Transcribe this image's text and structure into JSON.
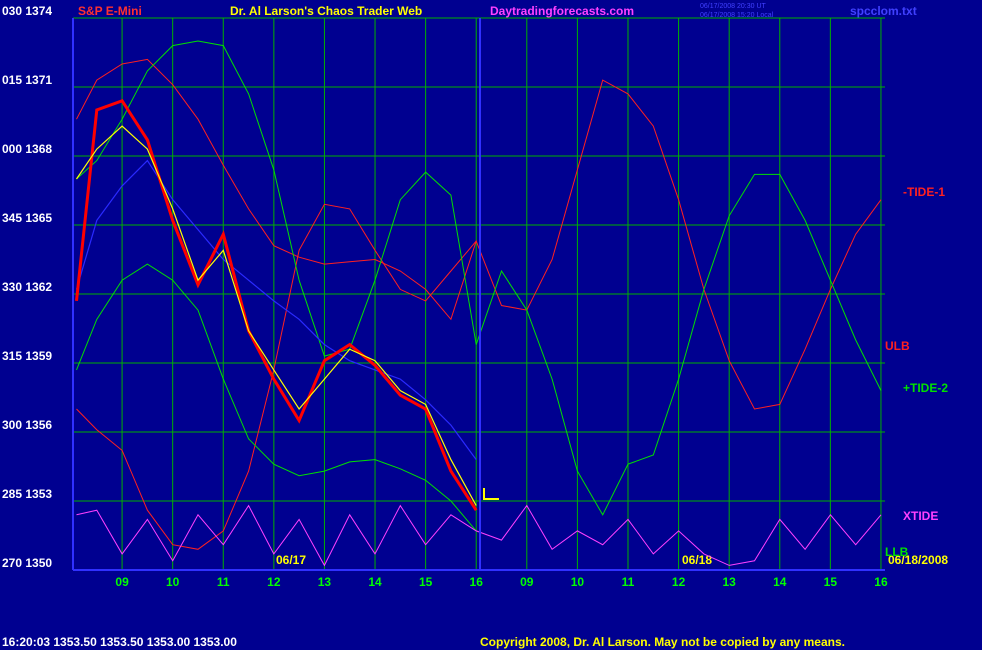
{
  "chart_data": {
    "type": "line",
    "symbol": "S&P E-Mini",
    "title": "Dr. Al Larson's Chaos Trader Web",
    "website": "Daytradingforecasts.com",
    "timestamps": [
      "06/17/2008 20:30 UT",
      "06/17/2008 15:20 Local"
    ],
    "file": "spcclom.txt",
    "day_labels": [
      "06/17",
      "06/18"
    ],
    "end_date": "06/18/2008",
    "status": "16:20:03  1353.50  1353.50  1353.00  1353.00",
    "copyright": "Copyright 2008, Dr. Al Larson. May not be copied by any means.",
    "grid": true,
    "xlim": [
      -0.97,
      15.08
    ],
    "xticks": [
      {
        "value": 0,
        "label": "09"
      },
      {
        "value": 1,
        "label": "10"
      },
      {
        "value": 2,
        "label": "11"
      },
      {
        "value": 3,
        "label": "12"
      },
      {
        "value": 4,
        "label": "13"
      },
      {
        "value": 5,
        "label": "14"
      },
      {
        "value": 6,
        "label": "15"
      },
      {
        "value": 7,
        "label": "16"
      },
      {
        "value": 8,
        "label": "09"
      },
      {
        "value": 9,
        "label": "10"
      },
      {
        "value": 10,
        "label": "11"
      },
      {
        "value": 11,
        "label": "12"
      },
      {
        "value": 12,
        "label": "13"
      },
      {
        "value": 13,
        "label": "14"
      },
      {
        "value": 14,
        "label": "15"
      },
      {
        "value": 15,
        "label": "16"
      }
    ],
    "ylim": [
      1350,
      1374
    ],
    "yticks": [
      {
        "value": 1350,
        "label": "270  1350"
      },
      {
        "value": 1353,
        "label": "285  1353"
      },
      {
        "value": 1356,
        "label": "300  1356"
      },
      {
        "value": 1359,
        "label": "315  1359"
      },
      {
        "value": 1362,
        "label": "330  1362"
      },
      {
        "value": 1365,
        "label": "345  1365"
      },
      {
        "value": 1368,
        "label": "000  1368"
      },
      {
        "value": 1371,
        "label": "015  1371"
      },
      {
        "value": 1374,
        "label": "030  1374"
      }
    ],
    "x": [
      -0.9,
      -0.5,
      0,
      0.5,
      1,
      1.5,
      2,
      2.5,
      3,
      3.5,
      4,
      4.5,
      5,
      5.5,
      6,
      6.5,
      7,
      7.5,
      8,
      8.5,
      9,
      9.5,
      10,
      10.5,
      11,
      11.5,
      12,
      12.5,
      13,
      13.5,
      14,
      14.5,
      15
    ],
    "series": [
      {
        "name": "ULB",
        "color": "#ff2020",
        "values": [
          1357.0,
          1356.1,
          1355.2,
          1352.6,
          1351.1,
          1350.9,
          1351.7,
          1354.3,
          1358.7,
          1363.9,
          1365.9,
          1365.7,
          1363.9,
          1362.2,
          1361.7,
          1363.0,
          1364.3,
          null,
          null,
          null,
          null,
          null,
          null,
          null,
          null,
          null,
          null,
          null,
          null,
          null,
          null,
          null,
          null
        ]
      },
      {
        "name": "-TIDE-1",
        "color": "#ff2020",
        "values": [
          1369.6,
          1371.3,
          1372.0,
          1372.2,
          1371.1,
          1369.6,
          1367.6,
          1365.7,
          1364.1,
          1363.6,
          1363.3,
          1363.4,
          1363.5,
          1363.0,
          1362.2,
          1360.9,
          1364.3,
          1361.5,
          1361.3,
          1363.5,
          1367.4,
          1371.3,
          1370.7,
          1369.3,
          1366.1,
          1362.2,
          1359.1,
          1357.0,
          1357.2,
          1359.6,
          1362.2,
          1364.6,
          1366.1
        ]
      },
      {
        "name": "LLB",
        "color": "#00e000",
        "values": [
          1358.7,
          1360.9,
          1362.6,
          1363.3,
          1362.6,
          1361.3,
          1358.3,
          1355.7,
          1354.6,
          1354.1,
          1354.3,
          1354.7,
          1354.8,
          1354.4,
          1353.9,
          1353.0,
          1351.7,
          null,
          null,
          null,
          null,
          null,
          null,
          null,
          null,
          null,
          null,
          null,
          null,
          null,
          null,
          null,
          null
        ]
      },
      {
        "name": "+TIDE-2",
        "color": "#00e000",
        "values": [
          1367.0,
          1367.8,
          1369.6,
          1371.7,
          1372.8,
          1373.0,
          1372.8,
          1370.7,
          1367.4,
          1362.6,
          1359.3,
          1359.6,
          1362.6,
          1366.1,
          1367.3,
          1366.3,
          1359.8,
          1363.0,
          1361.3,
          1358.3,
          1354.3,
          1352.4,
          1354.6,
          1355.0,
          1358.3,
          1362.2,
          1365.4,
          1367.2,
          1367.2,
          1365.2,
          1362.6,
          1360.0,
          1357.8
        ]
      },
      {
        "name": "XTIDE",
        "color": "#ff40ff",
        "values": [
          1352.4,
          1352.6,
          1350.7,
          1352.2,
          1350.4,
          1352.4,
          1351.1,
          1352.8,
          1350.7,
          1352.2,
          1350.2,
          1352.4,
          1350.7,
          1352.8,
          1351.1,
          1352.4,
          1351.7,
          1351.3,
          1352.8,
          1350.9,
          1351.7,
          1351.1,
          1352.2,
          1350.7,
          1351.7,
          1350.7,
          1350.2,
          1350.4,
          1352.2,
          1350.9,
          1352.4,
          1351.1,
          1352.4
        ]
      },
      {
        "color": "#2a2aff",
        "values": [
          1362.2,
          1365.2,
          1366.7,
          1367.8,
          1366.1,
          1364.8,
          1363.5,
          1362.6,
          1361.7,
          1360.9,
          1359.8,
          1359.1,
          1358.7,
          1358.3,
          1357.4,
          1356.3,
          1354.8,
          null,
          null,
          null,
          null,
          null,
          null,
          null,
          null,
          null,
          null,
          null,
          null,
          null,
          null,
          null,
          null
        ]
      },
      {
        "color": "#ff0000",
        "values": [
          1361.7,
          1370.0,
          1370.4,
          1368.7,
          1365.2,
          1362.4,
          1364.6,
          1360.4,
          1358.3,
          1356.5,
          1359.1,
          1359.8,
          1358.9,
          1357.6,
          1357.0,
          1354.3,
          1352.6,
          null,
          null,
          null,
          null,
          null,
          null,
          null,
          null,
          null,
          null,
          null,
          null,
          null,
          null,
          null,
          null
        ]
      },
      {
        "color": "#ffff00",
        "values": [
          1367.0,
          1368.3,
          1369.3,
          1368.3,
          1365.7,
          1362.6,
          1363.9,
          1360.4,
          1358.7,
          1357.0,
          1358.3,
          1359.6,
          1359.1,
          1357.8,
          1357.2,
          1354.8,
          1352.8,
          null,
          null,
          null,
          null,
          null,
          null,
          null,
          null,
          null,
          null,
          null,
          null,
          null,
          null,
          null,
          null
        ]
      }
    ]
  }
}
